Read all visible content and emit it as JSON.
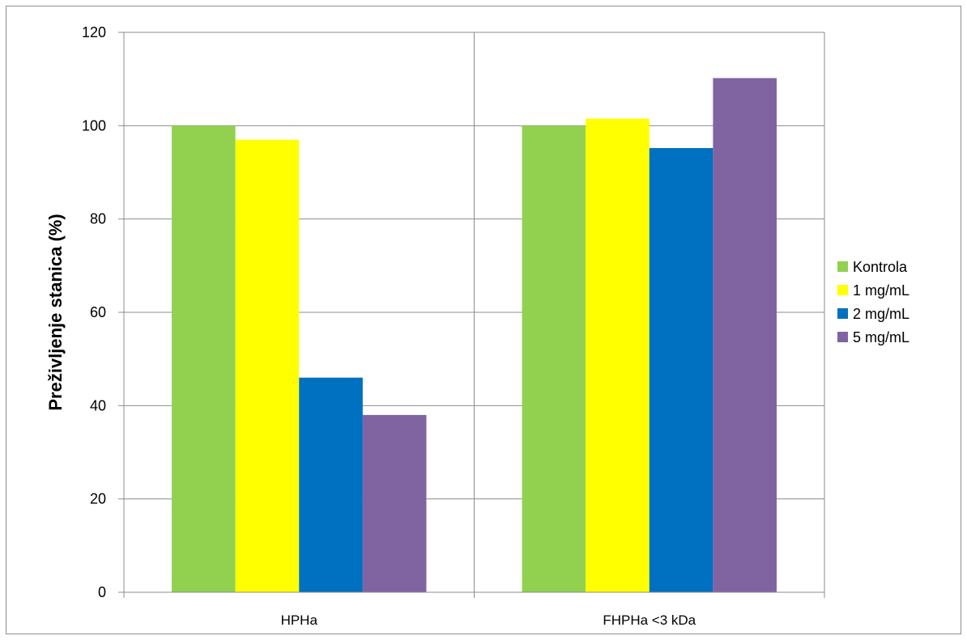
{
  "chart_data": {
    "type": "bar",
    "categories": [
      "HPHa",
      "FHPHa <3 kDa"
    ],
    "series": [
      {
        "name": "Kontrola",
        "values": [
          100,
          100
        ],
        "color": "#92d050"
      },
      {
        "name": "1 mg/mL",
        "values": [
          97,
          101.5
        ],
        "color": "#ffff00"
      },
      {
        "name": "2 mg/mL",
        "values": [
          46,
          95.2
        ],
        "color": "#0070c0"
      },
      {
        "name": "5 mg/mL",
        "values": [
          38,
          110.2
        ],
        "color": "#8064a2"
      }
    ],
    "title": "",
    "xlabel": "",
    "ylabel": "Preživljenje stanica (%)",
    "ylim": [
      0,
      120
    ],
    "yticks": [
      0,
      20,
      40,
      60,
      80,
      100,
      120
    ],
    "grid": true,
    "legend_position": "right"
  }
}
